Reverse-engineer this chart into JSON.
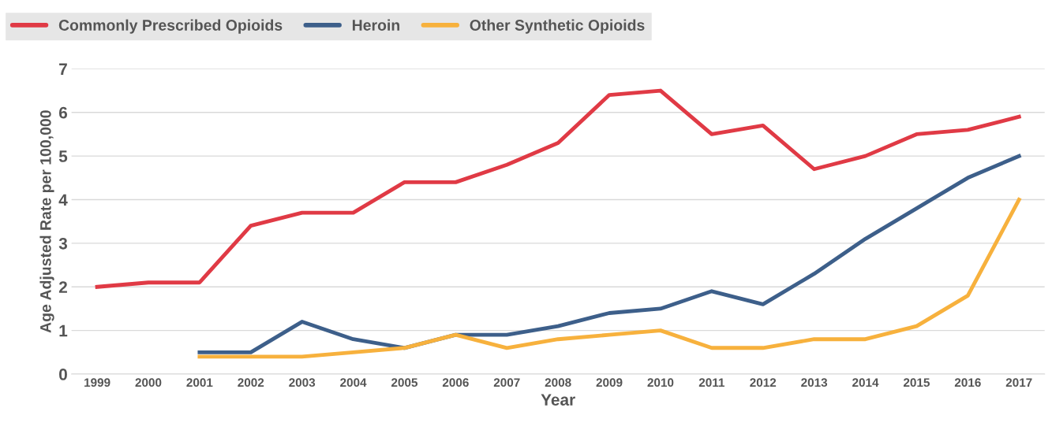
{
  "chart_data": {
    "type": "line",
    "xlabel": "Year",
    "ylabel": "Age Adjusted Rate per 100,000",
    "categories": [
      "1999",
      "2000",
      "2001",
      "2002",
      "2003",
      "2004",
      "2005",
      "2006",
      "2007",
      "2008",
      "2009",
      "2010",
      "2011",
      "2012",
      "2013",
      "2014",
      "2015",
      "2016",
      "2017"
    ],
    "series": [
      {
        "name": "Commonly Prescribed Opioids",
        "color": "#e03a45",
        "values": [
          2.0,
          2.1,
          2.1,
          3.4,
          3.7,
          3.7,
          4.4,
          4.4,
          4.8,
          5.3,
          6.4,
          6.5,
          5.5,
          5.7,
          4.7,
          5.0,
          5.5,
          5.6,
          5.9
        ]
      },
      {
        "name": "Heroin",
        "color": "#3d5f8a",
        "values": [
          null,
          null,
          0.5,
          0.5,
          1.2,
          0.8,
          0.6,
          0.9,
          0.9,
          1.1,
          1.4,
          1.5,
          1.9,
          1.6,
          2.3,
          3.1,
          3.8,
          4.5,
          5.0
        ]
      },
      {
        "name": "Other Synthetic Opioids",
        "color": "#f7b13d",
        "values": [
          null,
          null,
          0.4,
          0.4,
          0.4,
          0.5,
          0.6,
          0.9,
          0.6,
          0.8,
          0.9,
          1.0,
          0.6,
          0.6,
          0.8,
          0.8,
          1.1,
          1.8,
          4.0
        ]
      }
    ],
    "ylim": [
      0,
      7
    ],
    "yticks": [
      0,
      1,
      2,
      3,
      4,
      5,
      6,
      7
    ],
    "grid": "y",
    "legend": "top left",
    "marker": "none",
    "line_style": "solid"
  }
}
